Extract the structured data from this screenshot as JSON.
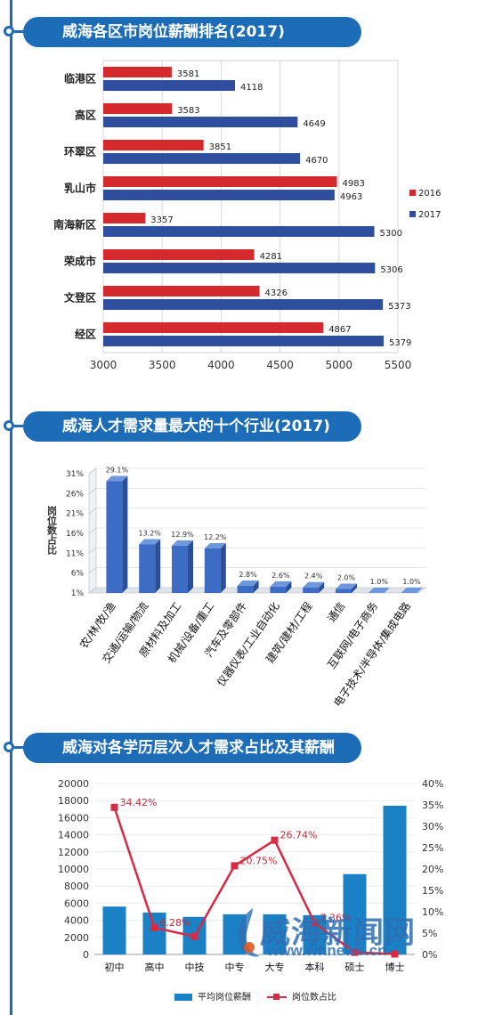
{
  "sections": [
    {
      "title": "威海各区市岗位薪酬排名(2017)"
    },
    {
      "title": "威海人才需求量最大的十个行业(2017)"
    },
    {
      "title": "威海对各学历层次人才需求占比及其薪酬"
    }
  ],
  "colors": {
    "red": "#d42a2e",
    "blue": "#2f4f9e",
    "bar_blue": "#1a81c4",
    "line_red": "#d62a45",
    "banner": "#1d6cb7"
  },
  "watermark": {
    "text": "威海新闻网",
    "url": "www.whnews.cn"
  },
  "chart_data": [
    {
      "type": "bar",
      "orientation": "horizontal",
      "categories": [
        "临港区",
        "高区",
        "环翠区",
        "乳山市",
        "南海新区",
        "荣成市",
        "文登区",
        "经区"
      ],
      "series": [
        {
          "name": "2016",
          "color": "#d42a2e",
          "values": [
            3581,
            3583,
            3851,
            4983,
            3357,
            4281,
            4326,
            4867
          ]
        },
        {
          "name": "2017",
          "color": "#2f4f9e",
          "values": [
            4118,
            4649,
            4670,
            4963,
            5300,
            5306,
            5373,
            5379
          ]
        }
      ],
      "x_ticks": [
        "3000",
        "3500",
        "4000",
        "4500",
        "5000",
        "5500"
      ],
      "xlim": [
        3000,
        5500
      ],
      "legend": "right"
    },
    {
      "type": "bar",
      "categories": [
        "农/林/牧/渔",
        "交通/运输/物流",
        "原材料及加工",
        "机械/设备/重工",
        "汽车及零部件",
        "仪器仪表/工业自动化",
        "建筑/建材/工程",
        "通信",
        "互联网/电子商务",
        "电子技术/半导体/集成电路"
      ],
      "values": [
        29.1,
        13.2,
        12.9,
        12.2,
        2.8,
        2.6,
        2.4,
        2.0,
        1.0,
        1.0
      ],
      "labels": [
        "29.1%",
        "13.2%",
        "12.9%",
        "12.2%",
        "2.8%",
        "2.6%",
        "2.4%",
        "2.0%",
        "1.0%",
        "1.0%"
      ],
      "ylabel": "岗位数占比",
      "y_ticks": [
        "1%",
        "6%",
        "11%",
        "16%",
        "21%",
        "26%",
        "31%"
      ],
      "ylim": [
        1,
        31
      ]
    },
    {
      "type": "bar",
      "categories": [
        "初中",
        "高中",
        "中技",
        "中专",
        "大专",
        "本科",
        "硕士",
        "博士"
      ],
      "series": [
        {
          "name": "平均岗位薪酬",
          "type": "bar",
          "color": "#1a81c4",
          "values": [
            5600,
            4900,
            4400,
            4700,
            4700,
            4600,
            9400,
            17400
          ]
        },
        {
          "name": "岗位数占比",
          "type": "line",
          "color": "#d62a45",
          "values": [
            34.42,
            6.28,
            4.2,
            20.75,
            26.74,
            7.36,
            0.5,
            0.1
          ],
          "labels": [
            "34.42%",
            "6.28%",
            "",
            "20.75%",
            "26.74%",
            "7.36%",
            "",
            ""
          ]
        }
      ],
      "y_left_ticks": [
        "0",
        "2000",
        "4000",
        "6000",
        "8000",
        "10000",
        "12000",
        "14000",
        "16000",
        "18000",
        "20000"
      ],
      "y_right_ticks": [
        "0%",
        "5%",
        "10%",
        "15%",
        "20%",
        "25%",
        "30%",
        "35%",
        "40%"
      ],
      "ylim_left": [
        0,
        20000
      ],
      "ylim_right": [
        0,
        40
      ],
      "legend": "bottom"
    }
  ]
}
